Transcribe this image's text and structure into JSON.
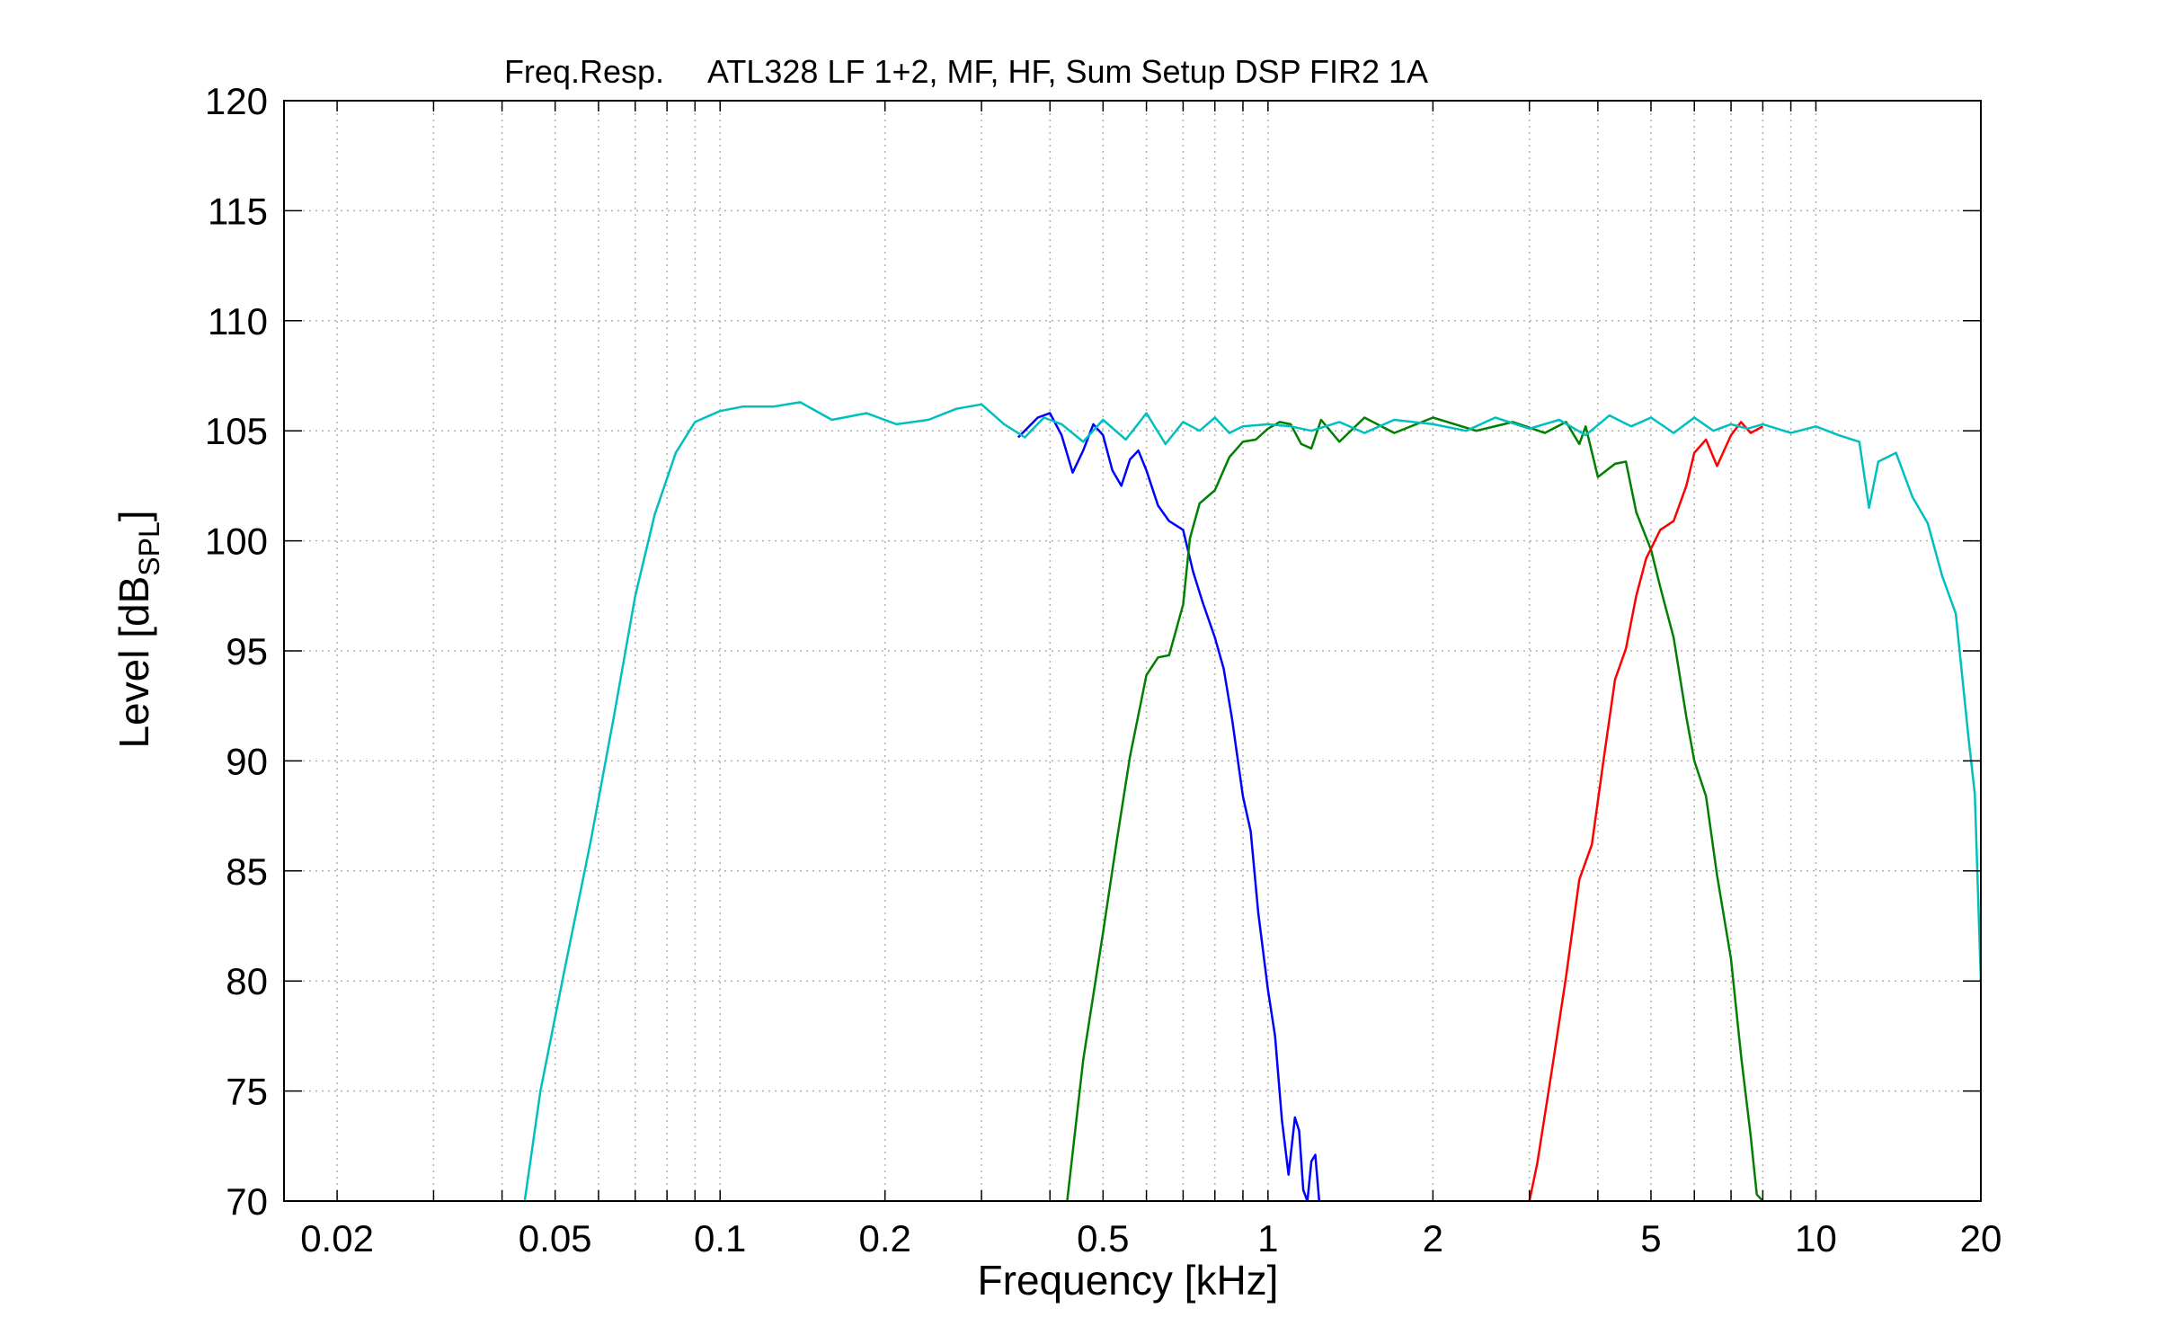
{
  "chart_data": {
    "type": "line",
    "title": "Freq.Resp.     ATL328 LF 1+2, MF, HF, Sum Setup DSP FIR2 1A",
    "xlabel": "Frequency [kHz]",
    "ylabel_main": "Level [dB",
    "ylabel_sub": "SPL",
    "ylabel_close": "]",
    "x_scale": "log",
    "xlim": [
      0.016,
      20
    ],
    "ylim": [
      70,
      120
    ],
    "grid": true,
    "x_ticks": [
      0.02,
      0.05,
      0.1,
      0.2,
      0.5,
      1,
      2,
      5,
      10,
      20
    ],
    "x_tick_labels": [
      "0.02",
      "0.05",
      "0.1",
      "0.2",
      "0.5",
      "1",
      "2",
      "5",
      "10",
      "20"
    ],
    "y_ticks": [
      70,
      75,
      80,
      85,
      90,
      95,
      100,
      105,
      110,
      115,
      120
    ],
    "y_tick_labels": [
      "70",
      "75",
      "80",
      "85",
      "90",
      "95",
      "100",
      "105",
      "110",
      "115",
      "120"
    ],
    "series": [
      {
        "color": "#0000ff",
        "points": [
          [
            0.35,
            104.7
          ],
          [
            0.38,
            105.6
          ],
          [
            0.4,
            105.8
          ],
          [
            0.42,
            104.8
          ],
          [
            0.44,
            103.1
          ],
          [
            0.46,
            104.1
          ],
          [
            0.48,
            105.3
          ],
          [
            0.5,
            104.8
          ],
          [
            0.52,
            103.2
          ],
          [
            0.54,
            102.5
          ],
          [
            0.56,
            103.7
          ],
          [
            0.58,
            104.1
          ],
          [
            0.6,
            103.2
          ],
          [
            0.63,
            101.6
          ],
          [
            0.66,
            100.9
          ],
          [
            0.7,
            100.5
          ],
          [
            0.73,
            98.6
          ],
          [
            0.76,
            97.2
          ],
          [
            0.8,
            95.6
          ],
          [
            0.83,
            94.2
          ],
          [
            0.86,
            91.9
          ],
          [
            0.9,
            88.4
          ],
          [
            0.93,
            86.8
          ],
          [
            0.96,
            83.1
          ],
          [
            1.0,
            79.6
          ],
          [
            1.03,
            77.5
          ],
          [
            1.06,
            73.7
          ],
          [
            1.09,
            71.2
          ],
          [
            1.12,
            73.8
          ],
          [
            1.14,
            73.2
          ],
          [
            1.16,
            70.5
          ],
          [
            1.18,
            70
          ],
          [
            1.2,
            71.8
          ],
          [
            1.22,
            72.1
          ],
          [
            1.24,
            70
          ]
        ]
      },
      {
        "color": "#007f00",
        "points": [
          [
            0.43,
            70
          ],
          [
            0.46,
            76.4
          ],
          [
            0.5,
            82.2
          ],
          [
            0.53,
            86.4
          ],
          [
            0.56,
            90.2
          ],
          [
            0.6,
            93.9
          ],
          [
            0.63,
            94.7
          ],
          [
            0.66,
            94.8
          ],
          [
            0.7,
            97.1
          ],
          [
            0.72,
            100.1
          ],
          [
            0.75,
            101.7
          ],
          [
            0.8,
            102.3
          ],
          [
            0.85,
            103.8
          ],
          [
            0.9,
            104.5
          ],
          [
            0.95,
            104.6
          ],
          [
            1.0,
            105.1
          ],
          [
            1.05,
            105.4
          ],
          [
            1.1,
            105.3
          ],
          [
            1.15,
            104.4
          ],
          [
            1.2,
            104.2
          ],
          [
            1.25,
            105.5
          ],
          [
            1.35,
            104.5
          ],
          [
            1.5,
            105.6
          ],
          [
            1.7,
            104.9
          ],
          [
            2.0,
            105.6
          ],
          [
            2.4,
            105.0
          ],
          [
            2.8,
            105.4
          ],
          [
            3.2,
            104.9
          ],
          [
            3.5,
            105.4
          ],
          [
            3.7,
            104.4
          ],
          [
            3.8,
            105.2
          ],
          [
            4.0,
            102.9
          ],
          [
            4.3,
            103.5
          ],
          [
            4.5,
            103.6
          ],
          [
            4.7,
            101.3
          ],
          [
            5.0,
            99.6
          ],
          [
            5.2,
            97.9
          ],
          [
            5.5,
            95.6
          ],
          [
            5.8,
            92.0
          ],
          [
            6.0,
            90.0
          ],
          [
            6.3,
            88.4
          ],
          [
            6.6,
            84.8
          ],
          [
            7.0,
            81.0
          ],
          [
            7.3,
            76.6
          ],
          [
            7.6,
            73.0
          ],
          [
            7.8,
            70.3
          ],
          [
            8.0,
            70
          ]
        ]
      },
      {
        "color": "#ff0000",
        "points": [
          [
            3.0,
            70
          ],
          [
            3.1,
            71.7
          ],
          [
            3.3,
            76.0
          ],
          [
            3.5,
            80.2
          ],
          [
            3.7,
            84.6
          ],
          [
            3.9,
            86.2
          ],
          [
            4.1,
            90.1
          ],
          [
            4.3,
            93.7
          ],
          [
            4.5,
            95.1
          ],
          [
            4.7,
            97.5
          ],
          [
            4.9,
            99.2
          ],
          [
            5.2,
            100.5
          ],
          [
            5.5,
            100.9
          ],
          [
            5.8,
            102.5
          ],
          [
            6.0,
            104.0
          ],
          [
            6.3,
            104.6
          ],
          [
            6.6,
            103.4
          ],
          [
            7.0,
            104.8
          ],
          [
            7.3,
            105.4
          ],
          [
            7.6,
            104.9
          ],
          [
            8.0,
            105.2
          ]
        ]
      },
      {
        "color": "#00bfbf",
        "points": [
          [
            0.044,
            70
          ],
          [
            0.047,
            75
          ],
          [
            0.052,
            80.5
          ],
          [
            0.058,
            86.3
          ],
          [
            0.064,
            92
          ],
          [
            0.07,
            97.5
          ],
          [
            0.076,
            101.2
          ],
          [
            0.083,
            104.0
          ],
          [
            0.09,
            105.4
          ],
          [
            0.1,
            105.9
          ],
          [
            0.11,
            106.1
          ],
          [
            0.125,
            106.1
          ],
          [
            0.14,
            106.3
          ],
          [
            0.16,
            105.5
          ],
          [
            0.185,
            105.8
          ],
          [
            0.21,
            105.3
          ],
          [
            0.24,
            105.5
          ],
          [
            0.27,
            106.0
          ],
          [
            0.3,
            106.2
          ],
          [
            0.33,
            105.3
          ],
          [
            0.36,
            104.7
          ],
          [
            0.39,
            105.6
          ],
          [
            0.42,
            105.3
          ],
          [
            0.46,
            104.5
          ],
          [
            0.5,
            105.5
          ],
          [
            0.55,
            104.6
          ],
          [
            0.6,
            105.8
          ],
          [
            0.65,
            104.4
          ],
          [
            0.7,
            105.4
          ],
          [
            0.75,
            105.0
          ],
          [
            0.8,
            105.6
          ],
          [
            0.85,
            104.9
          ],
          [
            0.9,
            105.2
          ],
          [
            1.0,
            105.3
          ],
          [
            1.1,
            105.2
          ],
          [
            1.2,
            105.0
          ],
          [
            1.35,
            105.4
          ],
          [
            1.5,
            104.9
          ],
          [
            1.7,
            105.5
          ],
          [
            2.0,
            105.3
          ],
          [
            2.3,
            105.0
          ],
          [
            2.6,
            105.6
          ],
          [
            3.0,
            105.1
          ],
          [
            3.4,
            105.5
          ],
          [
            3.8,
            104.8
          ],
          [
            4.2,
            105.7
          ],
          [
            4.6,
            105.2
          ],
          [
            5.0,
            105.6
          ],
          [
            5.5,
            104.9
          ],
          [
            6.0,
            105.6
          ],
          [
            6.5,
            105.0
          ],
          [
            7.0,
            105.3
          ],
          [
            7.5,
            105.1
          ],
          [
            8.0,
            105.3
          ],
          [
            9.0,
            104.9
          ],
          [
            10.0,
            105.2
          ],
          [
            11.0,
            104.8
          ],
          [
            12.0,
            104.5
          ],
          [
            12.5,
            101.5
          ],
          [
            13.0,
            103.6
          ],
          [
            14.0,
            104.0
          ],
          [
            15.0,
            102.0
          ],
          [
            16.0,
            100.8
          ],
          [
            17.0,
            98.4
          ],
          [
            18.0,
            96.7
          ],
          [
            19.0,
            91.0
          ],
          [
            19.5,
            88.5
          ],
          [
            20.0,
            80.0
          ]
        ]
      }
    ]
  }
}
